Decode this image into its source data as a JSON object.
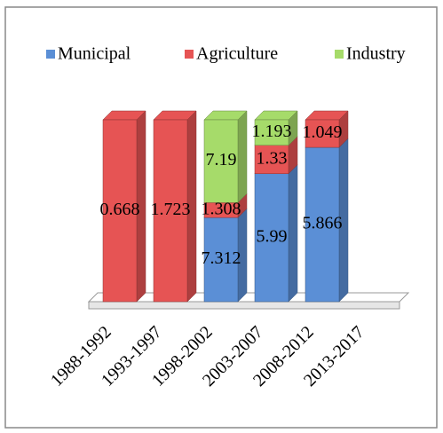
{
  "chart_data": {
    "type": "bar",
    "stacking": "percent",
    "three_d": true,
    "legend": "top",
    "categories": [
      "1988-1992",
      "1993-1997",
      "1998-2002",
      "2003-2007",
      "2008-2012",
      "2013-2017"
    ],
    "series": [
      {
        "name": "Municipal",
        "color": "#5b8fd6",
        "values": [
          null,
          null,
          7.312,
          5.99,
          5.866,
          null
        ]
      },
      {
        "name": "Agriculture",
        "color": "#e65454",
        "values": [
          0.668,
          1.723,
          1.308,
          1.33,
          1.049,
          null
        ]
      },
      {
        "name": "Industry",
        "color": "#a6db6a",
        "values": [
          null,
          null,
          7.19,
          1.193,
          null,
          null
        ]
      }
    ]
  }
}
